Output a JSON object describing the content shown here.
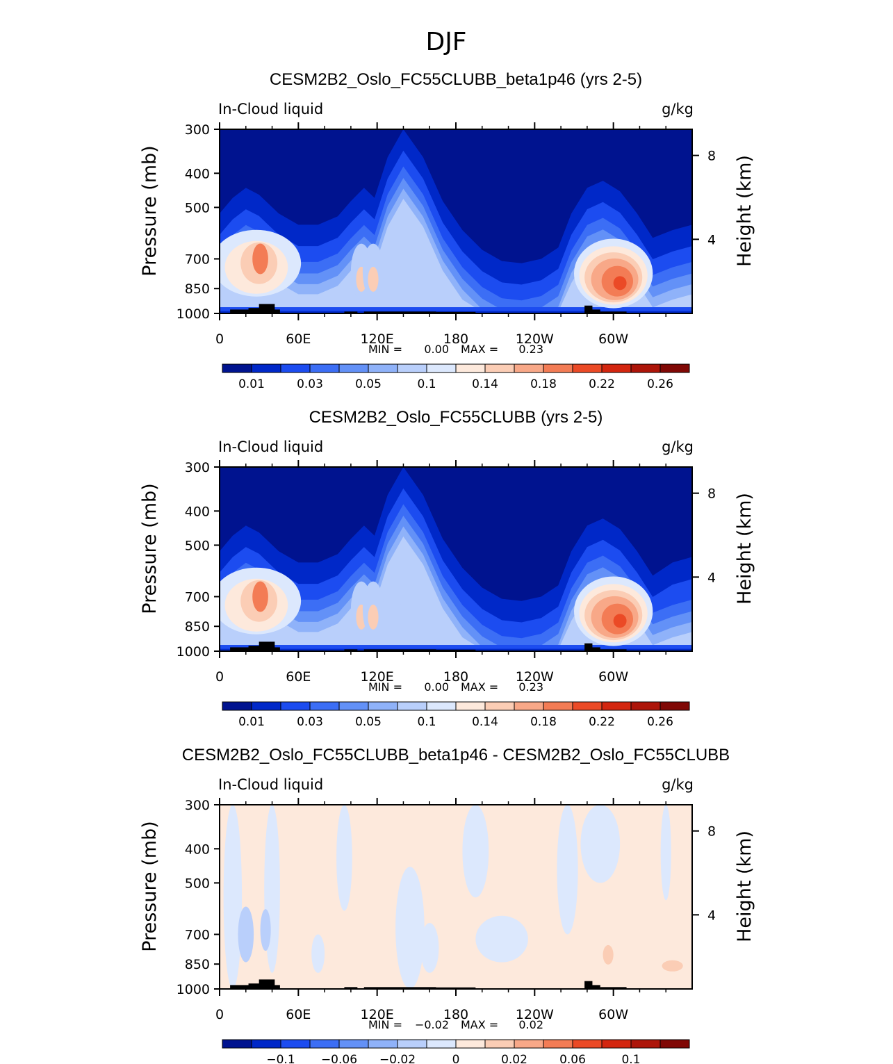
{
  "page_title": "DJF",
  "chart_data": [
    {
      "type": "heatmap",
      "title": "CESM2B2_Oslo_FC55CLUBB_beta1p46 (yrs 2-5)",
      "variable_label": "In-Cloud liquid",
      "units_label": "g/kg",
      "ylabel": "Pressure (mb)",
      "ylabel_right": "Height (km)",
      "y_ticks": [
        "300",
        "400",
        "500",
        "700",
        "850",
        "1000"
      ],
      "y_right_ticks": [
        "8",
        "4"
      ],
      "x_ticks": [
        "0",
        "60E",
        "120E",
        "180",
        "120W",
        "60W"
      ],
      "stats": {
        "min_label": "MIN =",
        "min": "0.00",
        "max_label": "MAX =",
        "max": "0.23"
      },
      "colorbar_labels": [
        "0.01",
        "0.03",
        "0.05",
        "0.1",
        "0.14",
        "0.18",
        "0.22",
        "0.26"
      ],
      "colors": [
        "#00138f",
        "#0028c8",
        "#1c4cf0",
        "#3c6ef5",
        "#6391f7",
        "#8fb2f9",
        "#b9cffb",
        "#dce8fd",
        "#fde9dc",
        "#fbcdb5",
        "#f8a888",
        "#f37c55",
        "#eb4a26",
        "#d3260f",
        "#ad1509",
        "#800805"
      ]
    },
    {
      "type": "heatmap",
      "title": "CESM2B2_Oslo_FC55CLUBB (yrs 2-5)",
      "variable_label": "In-Cloud liquid",
      "units_label": "g/kg",
      "ylabel": "Pressure (mb)",
      "ylabel_right": "Height (km)",
      "y_ticks": [
        "300",
        "400",
        "500",
        "700",
        "850",
        "1000"
      ],
      "y_right_ticks": [
        "8",
        "4"
      ],
      "x_ticks": [
        "0",
        "60E",
        "120E",
        "180",
        "120W",
        "60W"
      ],
      "stats": {
        "min_label": "MIN =",
        "min": "0.00",
        "max_label": "MAX =",
        "max": "0.23"
      },
      "colorbar_labels": [
        "0.01",
        "0.03",
        "0.05",
        "0.1",
        "0.14",
        "0.18",
        "0.22",
        "0.26"
      ],
      "colors": [
        "#00138f",
        "#0028c8",
        "#1c4cf0",
        "#3c6ef5",
        "#6391f7",
        "#8fb2f9",
        "#b9cffb",
        "#dce8fd",
        "#fde9dc",
        "#fbcdb5",
        "#f8a888",
        "#f37c55",
        "#eb4a26",
        "#d3260f",
        "#ad1509",
        "#800805"
      ]
    },
    {
      "type": "heatmap",
      "title": "CESM2B2_Oslo_FC55CLUBB_beta1p46 - CESM2B2_Oslo_FC55CLUBB",
      "variable_label": "In-Cloud liquid",
      "units_label": "g/kg",
      "ylabel": "Pressure (mb)",
      "ylabel_right": "Height (km)",
      "y_ticks": [
        "300",
        "400",
        "500",
        "700",
        "850",
        "1000"
      ],
      "y_right_ticks": [
        "8",
        "4"
      ],
      "x_ticks": [
        "0",
        "60E",
        "120E",
        "180",
        "120W",
        "60W"
      ],
      "stats": {
        "min_label": "MIN =",
        "min": "−0.02",
        "max_label": "MAX =",
        "max": "0.02"
      },
      "colorbar_labels": [
        "−0.1",
        "−0.06",
        "−0.02",
        "0",
        "0.02",
        "0.06",
        "0.1"
      ],
      "colors": [
        "#00138f",
        "#0028c8",
        "#1c4cf0",
        "#3c6ef5",
        "#6391f7",
        "#8fb2f9",
        "#b9cffb",
        "#dce8fd",
        "#fde9dc",
        "#fbcdb5",
        "#f8a888",
        "#f37c55",
        "#eb4a26",
        "#d3260f",
        "#ad1509",
        "#800805"
      ]
    }
  ]
}
